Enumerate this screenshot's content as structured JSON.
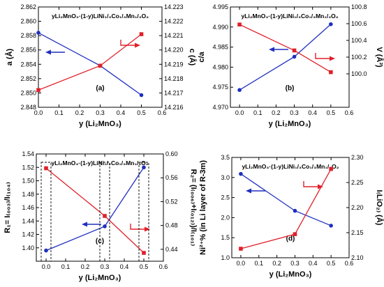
{
  "colors": {
    "series_left": "#1f2fbf",
    "series_right": "#e0202a",
    "axis": "#000000",
    "box": "#000000"
  },
  "chart_data": [
    {
      "type": "line",
      "panel_label": "(a)",
      "formula": "yLi₂MnO₃·(1-y)LiNi₁/₃Co₁/₃Mn₁/₃O₂",
      "xlabel": "y (Li₂MnO₃)",
      "ylabel_left": "a (Å)",
      "ylabel_right": "c (Å)",
      "xlim": [
        0.0,
        0.6
      ],
      "xticks": [
        0.0,
        0.1,
        0.2,
        0.3,
        0.4,
        0.5,
        0.6
      ],
      "ylim_left": [
        2.848,
        2.862
      ],
      "yticks_left": [
        2.848,
        2.85,
        2.852,
        2.854,
        2.856,
        2.858,
        2.86,
        2.862
      ],
      "ylim_right": [
        14.216,
        14.223
      ],
      "yticks_right": [
        14.216,
        14.217,
        14.218,
        14.219,
        14.22,
        14.221,
        14.222,
        14.223
      ],
      "x": [
        0.0,
        0.3,
        0.5
      ],
      "series": [
        {
          "axis": "left",
          "color": "#1f2fbf",
          "marker": "circle",
          "values": [
            2.8584,
            2.8538,
            2.8497
          ]
        },
        {
          "axis": "right",
          "color": "#e0202a",
          "marker": "square",
          "values": [
            14.2172,
            14.2189,
            14.2211
          ]
        }
      ]
    },
    {
      "type": "line",
      "panel_label": "(b)",
      "formula": "yLi₂MnO₃·(1-y)LiNi₁/₃Co₁/₃Mn₁/₃O₂",
      "xlabel": "y (Li₂MnO₃)",
      "ylabel_left": "c/a",
      "ylabel_right": "V (Å³)",
      "xlim": [
        -0.05,
        0.6
      ],
      "xticks": [
        0.0,
        0.1,
        0.2,
        0.3,
        0.4,
        0.5,
        0.6
      ],
      "ylim_left": [
        4.97,
        4.995
      ],
      "yticks_left": [
        4.97,
        4.975,
        4.98,
        4.985,
        4.99,
        4.995
      ],
      "ylim_right": [
        99.6,
        100.8
      ],
      "yticks_right": [
        100.0,
        100.2,
        100.4,
        100.6,
        100.8
      ],
      "x": [
        0.0,
        0.3,
        0.5
      ],
      "series": [
        {
          "axis": "left",
          "color": "#1f2fbf",
          "marker": "circle",
          "values": [
            4.9743,
            4.9826,
            4.9907
          ]
        },
        {
          "axis": "right",
          "color": "#e0202a",
          "marker": "square",
          "values": [
            100.59,
            100.28,
            100.02
          ]
        }
      ]
    },
    {
      "type": "line",
      "panel_label": "(c)",
      "formula": "yLi₂MnO₃·(1-y)LiNi₁/₃Co₁/₃Mn₁/₃O₂",
      "xlabel": "y (Li₂MnO₃)",
      "ylabel_left": "R₁= I₍₀₀₃₎/I₍₁₀₄₎",
      "ylabel_right": "R₂= (I₍₀₀₆₎+I₍₀₁₂₎)/I₍₁₀₁₎",
      "xlim": [
        -0.05,
        0.6
      ],
      "xticks": [
        0.0,
        0.1,
        0.2,
        0.3,
        0.4,
        0.5,
        0.6
      ],
      "ylim_left": [
        1.38,
        1.54
      ],
      "yticks_left": [
        1.4,
        1.42,
        1.44,
        1.46,
        1.48,
        1.5,
        1.52,
        1.54
      ],
      "ylim_right": [
        0.42,
        0.6
      ],
      "yticks_right": [
        0.44,
        0.48,
        0.52,
        0.56,
        0.6
      ],
      "x": [
        0.0,
        0.3,
        0.5
      ],
      "series": [
        {
          "axis": "left",
          "color": "#1f2fbf",
          "marker": "circle",
          "values": [
            1.396,
            1.432,
            1.52
          ]
        },
        {
          "axis": "right",
          "color": "#e0202a",
          "marker": "square",
          "values": [
            0.576,
            0.496,
            0.434
          ]
        }
      ]
    },
    {
      "type": "line",
      "panel_label": "(d)",
      "formula": "yLi₂MnO₃·(1-y)LiNi₁/₃Co₁/₃Mn₁/₃O₂",
      "xlabel": "y (Li₂MnO₃)",
      "ylabel_left": "Ni²⁺% (in Li layer of R-3m)",
      "ylabel_right": "I₍LiO₂₎ (Å)",
      "xlim": [
        -0.05,
        0.6
      ],
      "xticks": [
        0.0,
        0.1,
        0.2,
        0.3,
        0.4,
        0.5,
        0.6
      ],
      "ylim_left": [
        1.0,
        3.5
      ],
      "yticks_left": [
        1.0,
        1.5,
        2.0,
        2.5,
        3.0,
        3.5
      ],
      "ylim_right": [
        2.1,
        2.3
      ],
      "yticks_right": [
        2.1,
        2.15,
        2.2,
        2.25,
        2.3
      ],
      "x": [
        0.0,
        0.3,
        0.5
      ],
      "series": [
        {
          "axis": "left",
          "color": "#1f2fbf",
          "marker": "circle",
          "values": [
            3.09,
            2.17,
            1.8
          ]
        },
        {
          "axis": "right",
          "color": "#e0202a",
          "marker": "square",
          "values": [
            2.118,
            2.147,
            2.277
          ]
        }
      ]
    }
  ]
}
